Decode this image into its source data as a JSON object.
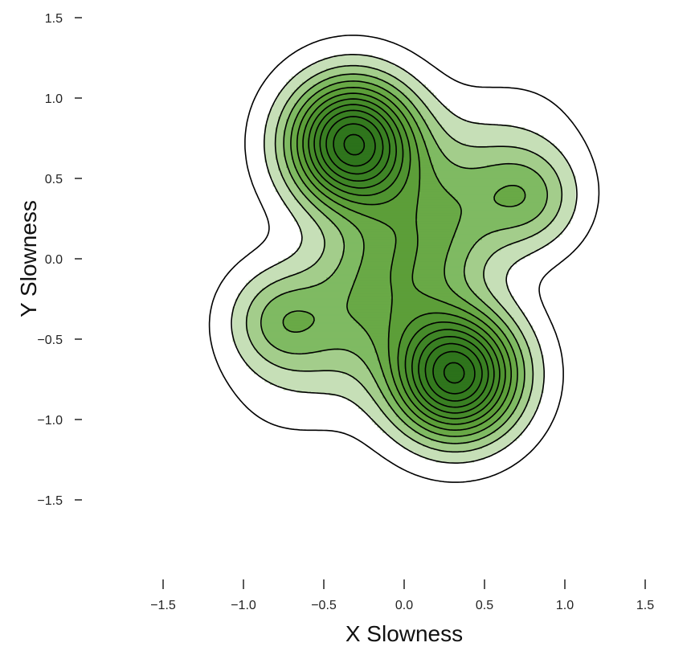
{
  "chart_data": {
    "type": "contour",
    "title": "",
    "xlabel": "X Slowness",
    "ylabel": "Y Slowness",
    "xlim": [
      -1.5,
      1.5
    ],
    "ylim": [
      -1.5,
      1.5
    ],
    "xticks": [
      "−1.5",
      "−1.0",
      "−0.5",
      "0.0",
      "0.5",
      "1.0",
      "1.5"
    ],
    "yticks": [
      "1.5",
      "1.0",
      "0.5",
      "0.0",
      "−0.5",
      "−1.0",
      "−1.5"
    ],
    "grid": false,
    "legend": "none",
    "fill_colormap": "greens",
    "line_color": "#000000",
    "peaks": [
      {
        "x": -0.32,
        "y": 0.72,
        "weight": 1.0
      },
      {
        "x": 0.32,
        "y": -0.72,
        "weight": 1.0
      },
      {
        "x": 0.78,
        "y": 0.38,
        "weight": 0.25
      },
      {
        "x": -0.78,
        "y": -0.38,
        "weight": 0.25
      }
    ]
  }
}
